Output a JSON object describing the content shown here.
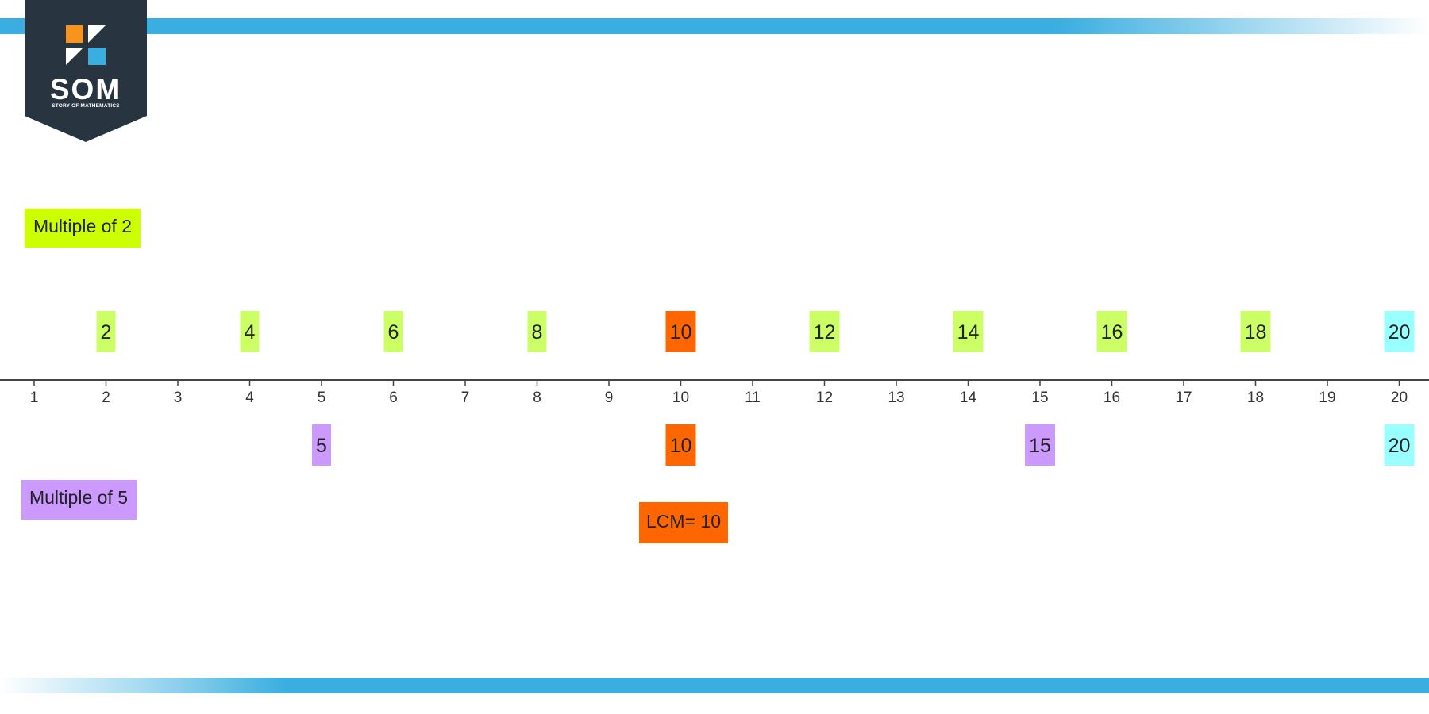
{
  "logo": {
    "title": "SOM",
    "subtitle": "STORY OF MATHEMATICS"
  },
  "legend": {
    "multiple_of_2": "Multiple of 2",
    "multiple_of_5": "Multiple of 5",
    "lcm": "LCM= 10"
  },
  "colors": {
    "brand_blue": "#3aaee0",
    "logo_dark": "#283540",
    "logo_orange": "#f7941d",
    "multiple_of_2_legend": "#ccff00",
    "multiple_of_2": "#ccff66",
    "multiple_of_5": "#cc99ff",
    "common": "#ff6600",
    "twenty": "#99ffff"
  },
  "chart_data": {
    "type": "number-line",
    "axis": {
      "min": 1,
      "max": 20,
      "ticks": [
        1,
        2,
        3,
        4,
        5,
        6,
        7,
        8,
        9,
        10,
        11,
        12,
        13,
        14,
        15,
        16,
        17,
        18,
        19,
        20
      ]
    },
    "multiples_of_2": [
      {
        "value": 2,
        "label": "2",
        "color": "#ccff66"
      },
      {
        "value": 4,
        "label": "4",
        "color": "#ccff66"
      },
      {
        "value": 6,
        "label": "6",
        "color": "#ccff66"
      },
      {
        "value": 8,
        "label": "8",
        "color": "#ccff66"
      },
      {
        "value": 10,
        "label": "10",
        "color": "#ff6600"
      },
      {
        "value": 12,
        "label": "12",
        "color": "#ccff66"
      },
      {
        "value": 14,
        "label": "14",
        "color": "#ccff66"
      },
      {
        "value": 16,
        "label": "16",
        "color": "#ccff66"
      },
      {
        "value": 18,
        "label": "18",
        "color": "#ccff66"
      },
      {
        "value": 20,
        "label": "20",
        "color": "#99ffff"
      }
    ],
    "multiples_of_5": [
      {
        "value": 5,
        "label": "5",
        "color": "#cc99ff"
      },
      {
        "value": 10,
        "label": "10",
        "color": "#ff6600"
      },
      {
        "value": 15,
        "label": "15",
        "color": "#cc99ff"
      },
      {
        "value": 20,
        "label": "20",
        "color": "#99ffff"
      }
    ],
    "lcm": 10
  }
}
